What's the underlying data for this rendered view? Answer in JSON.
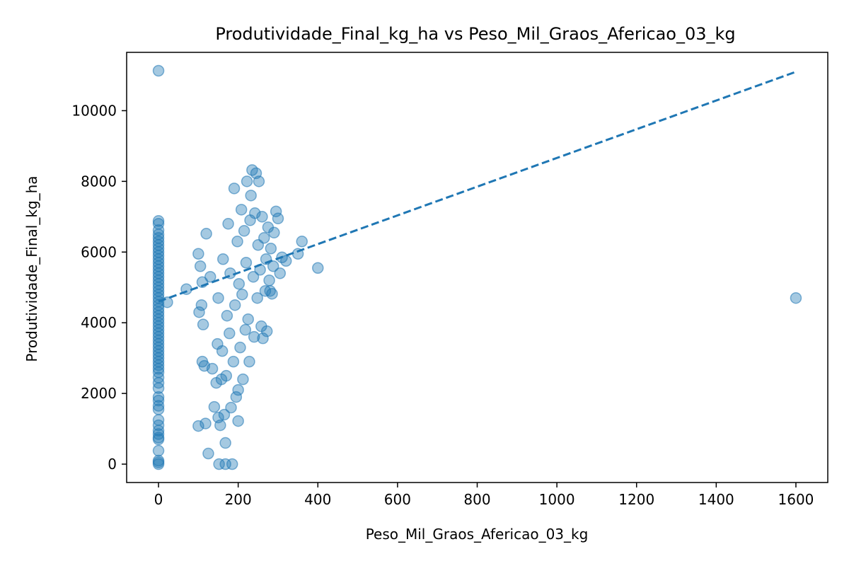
{
  "chart_data": {
    "type": "scatter",
    "title": "Produtividade_Final_kg_ha vs Peso_Mil_Graos_Afericao_03_kg",
    "xlabel": "Peso_Mil_Graos_Afericao_03_kg",
    "ylabel": "Produtividade_Final_kg_ha",
    "xlim": [
      -80,
      1680
    ],
    "ylim": [
      -520,
      11650
    ],
    "xticks": [
      0,
      200,
      400,
      600,
      800,
      1000,
      1200,
      1400,
      1600
    ],
    "yticks": [
      0,
      2000,
      4000,
      6000,
      8000,
      10000
    ],
    "grid": false,
    "legend": "none",
    "point_color": "#1f77b4",
    "point_alpha": 0.4,
    "trendline": {
      "style": "dashed",
      "color": "#1f77b4",
      "x": [
        0,
        1600
      ],
      "y": [
        4600,
        11100
      ]
    },
    "points": [
      [
        0,
        11130
      ],
      [
        0,
        6880
      ],
      [
        0,
        6800
      ],
      [
        0,
        6620
      ],
      [
        0,
        6500
      ],
      [
        0,
        6400
      ],
      [
        0,
        6300
      ],
      [
        0,
        6200
      ],
      [
        0,
        6100
      ],
      [
        0,
        6000
      ],
      [
        0,
        5900
      ],
      [
        0,
        5800
      ],
      [
        0,
        5700
      ],
      [
        0,
        5600
      ],
      [
        0,
        5500
      ],
      [
        0,
        5400
      ],
      [
        0,
        5300
      ],
      [
        0,
        5200
      ],
      [
        0,
        5100
      ],
      [
        0,
        5000
      ],
      [
        0,
        4900
      ],
      [
        0,
        4800
      ],
      [
        0,
        4700
      ],
      [
        0,
        4600
      ],
      [
        0,
        4500
      ],
      [
        0,
        4400
      ],
      [
        0,
        4300
      ],
      [
        0,
        4200
      ],
      [
        0,
        4100
      ],
      [
        0,
        4000
      ],
      [
        0,
        3900
      ],
      [
        0,
        3800
      ],
      [
        0,
        3700
      ],
      [
        0,
        3600
      ],
      [
        0,
        3500
      ],
      [
        0,
        3400
      ],
      [
        0,
        3300
      ],
      [
        0,
        3200
      ],
      [
        0,
        3100
      ],
      [
        0,
        3000
      ],
      [
        0,
        2900
      ],
      [
        0,
        2800
      ],
      [
        0,
        2700
      ],
      [
        0,
        2600
      ],
      [
        0,
        2450
      ],
      [
        0,
        2300
      ],
      [
        0,
        2150
      ],
      [
        0,
        1900
      ],
      [
        0,
        1800
      ],
      [
        0,
        1650
      ],
      [
        0,
        1550
      ],
      [
        0,
        1250
      ],
      [
        0,
        1100
      ],
      [
        0,
        950
      ],
      [
        0,
        850
      ],
      [
        0,
        750
      ],
      [
        0,
        700
      ],
      [
        0,
        380
      ],
      [
        0,
        100
      ],
      [
        0,
        50
      ],
      [
        0,
        0
      ],
      [
        22,
        4580
      ],
      [
        70,
        4950
      ],
      [
        100,
        5950
      ],
      [
        102,
        4300
      ],
      [
        105,
        5600
      ],
      [
        108,
        4500
      ],
      [
        110,
        5150
      ],
      [
        112,
        3950
      ],
      [
        100,
        1080
      ],
      [
        110,
        2900
      ],
      [
        115,
        2780
      ],
      [
        118,
        1150
      ],
      [
        120,
        6520
      ],
      [
        125,
        300
      ],
      [
        130,
        5300
      ],
      [
        135,
        2700
      ],
      [
        140,
        1620
      ],
      [
        145,
        2300
      ],
      [
        148,
        3400
      ],
      [
        150,
        4700
      ],
      [
        150,
        1320
      ],
      [
        152,
        0
      ],
      [
        155,
        1100
      ],
      [
        158,
        2400
      ],
      [
        160,
        3200
      ],
      [
        162,
        5800
      ],
      [
        165,
        1400
      ],
      [
        168,
        600
      ],
      [
        168,
        0
      ],
      [
        170,
        2500
      ],
      [
        172,
        4200
      ],
      [
        175,
        6800
      ],
      [
        178,
        3700
      ],
      [
        180,
        5400
      ],
      [
        182,
        1600
      ],
      [
        185,
        0
      ],
      [
        188,
        2900
      ],
      [
        190,
        7800
      ],
      [
        192,
        4500
      ],
      [
        195,
        1900
      ],
      [
        198,
        6300
      ],
      [
        200,
        2100
      ],
      [
        200,
        1220
      ],
      [
        202,
        5100
      ],
      [
        205,
        3300
      ],
      [
        208,
        7200
      ],
      [
        210,
        4800
      ],
      [
        212,
        2400
      ],
      [
        215,
        6600
      ],
      [
        218,
        3800
      ],
      [
        220,
        5700
      ],
      [
        222,
        8000
      ],
      [
        225,
        4100
      ],
      [
        228,
        2900
      ],
      [
        230,
        6900
      ],
      [
        232,
        7600
      ],
      [
        235,
        8320
      ],
      [
        238,
        5300
      ],
      [
        240,
        3600
      ],
      [
        242,
        7100
      ],
      [
        245,
        8230
      ],
      [
        248,
        4700
      ],
      [
        250,
        6200
      ],
      [
        252,
        8000
      ],
      [
        255,
        5500
      ],
      [
        258,
        3900
      ],
      [
        260,
        7000
      ],
      [
        262,
        3560
      ],
      [
        265,
        6400
      ],
      [
        268,
        4900
      ],
      [
        270,
        5800
      ],
      [
        272,
        3760
      ],
      [
        275,
        6700
      ],
      [
        278,
        5200
      ],
      [
        280,
        4900
      ],
      [
        282,
        6100
      ],
      [
        285,
        4820
      ],
      [
        288,
        5600
      ],
      [
        290,
        6550
      ],
      [
        295,
        7150
      ],
      [
        300,
        6950
      ],
      [
        305,
        5400
      ],
      [
        310,
        5850
      ],
      [
        320,
        5750
      ],
      [
        350,
        5950
      ],
      [
        360,
        6300
      ],
      [
        400,
        5550
      ],
      [
        1600,
        4700
      ]
    ]
  }
}
